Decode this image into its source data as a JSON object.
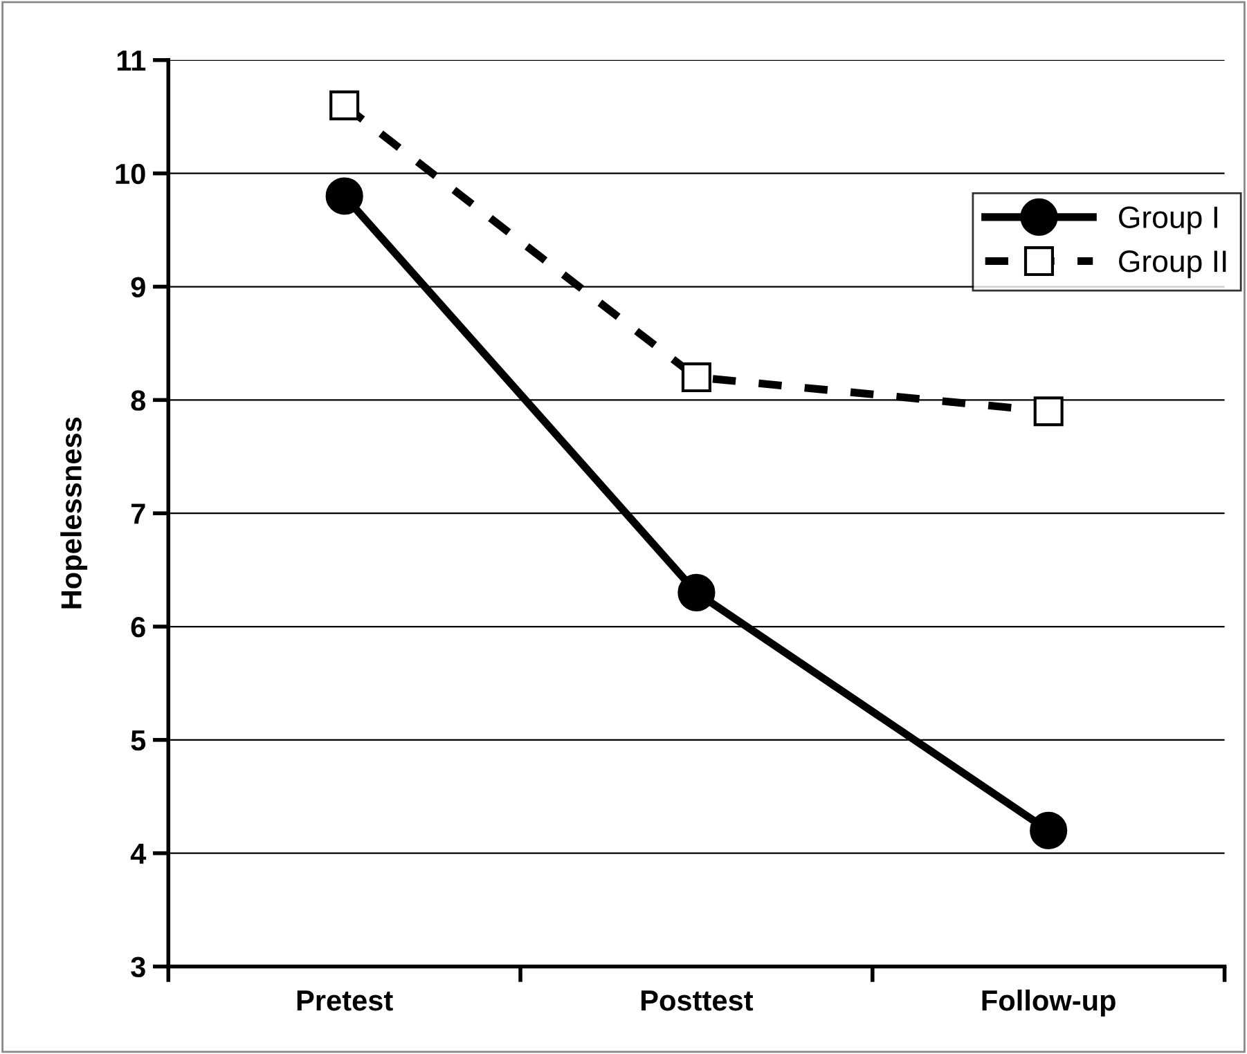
{
  "chart_data": {
    "type": "line",
    "ylabel": "Hopelessness",
    "categories": [
      "Pretest",
      "Posttest",
      "Follow-up"
    ],
    "series": [
      {
        "name": "Group I",
        "color": "#000000",
        "values": [
          9.8,
          6.3,
          4.2
        ],
        "marker": "circle",
        "line_style": "solid"
      },
      {
        "name": "Group II",
        "color": "#000000",
        "values": [
          10.6,
          8.2,
          7.9
        ],
        "marker": "square",
        "line_style": "dashed"
      }
    ],
    "ylim": [
      3,
      11
    ],
    "yticks": [
      3,
      4,
      5,
      6,
      7,
      8,
      9,
      10,
      11
    ],
    "grid": "y",
    "legend": "top right"
  }
}
